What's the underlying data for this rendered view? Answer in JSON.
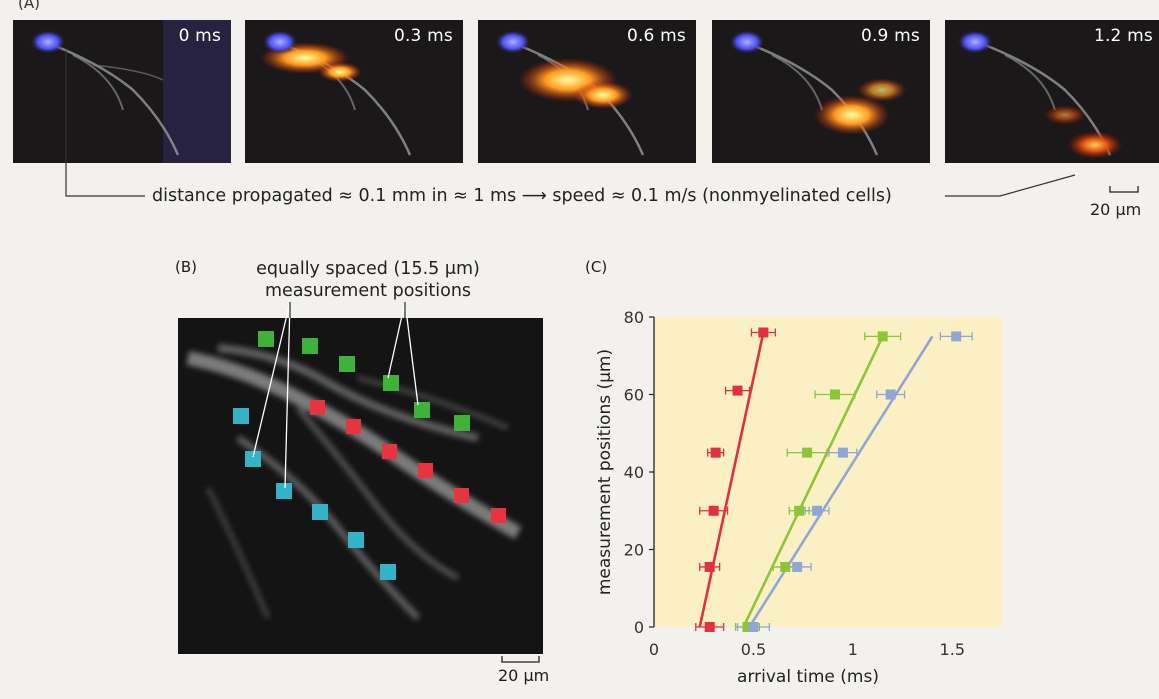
{
  "panel_a": {
    "frames": [
      {
        "time": "0 ms"
      },
      {
        "time": "0.3 ms"
      },
      {
        "time": "0.6 ms"
      },
      {
        "time": "0.9 ms"
      },
      {
        "time": "1.2 ms"
      }
    ],
    "caption": "distance propagated ≈ 0.1 mm in ≈ 1 ms ⟶ speed ≈ 0.1 m/s (nonmyelinated cells)",
    "scale_bar": "20 μm"
  },
  "panel_b": {
    "letter": "(B)",
    "label_line1": "equally spaced (15.5 μm)",
    "label_line2": "measurement positions",
    "scale_bar": "20 μm",
    "marker_colors": {
      "green": "#3fb23a",
      "red": "#e8343e",
      "cyan": "#35b3c6"
    }
  },
  "panel_c": {
    "letter": "(C)"
  },
  "chart_data": {
    "type": "scatter",
    "xlabel": "arrival time (ms)",
    "ylabel": "measurement positions (μm)",
    "xlim": [
      0,
      1.75
    ],
    "ylim": [
      0,
      80
    ],
    "xticks": [
      "0",
      "0.5",
      "1",
      "1.5"
    ],
    "xtick_values": [
      0,
      0.5,
      1,
      1.5
    ],
    "yticks": [
      "0",
      "20",
      "40",
      "60",
      "80"
    ],
    "ytick_values": [
      0,
      20,
      40,
      60,
      80
    ],
    "background": "#faf0c4",
    "series": [
      {
        "color": "#e23040",
        "points": [
          {
            "x": 0.28,
            "y": 0,
            "err": 0.07
          },
          {
            "x": 0.28,
            "y": 15.5,
            "err": 0.05
          },
          {
            "x": 0.3,
            "y": 30,
            "err": 0.07
          },
          {
            "x": 0.31,
            "y": 45,
            "err": 0.04
          },
          {
            "x": 0.42,
            "y": 61,
            "err": 0.06
          },
          {
            "x": 0.55,
            "y": 76,
            "err": 0.06
          }
        ],
        "fit": [
          [
            0.23,
            0
          ],
          [
            0.55,
            76
          ]
        ]
      },
      {
        "color": "#8cc43a",
        "points": [
          {
            "x": 0.47,
            "y": 0,
            "err": 0.06
          },
          {
            "x": 0.66,
            "y": 15.5,
            "err": 0.06
          },
          {
            "x": 0.73,
            "y": 30,
            "err": 0.05
          },
          {
            "x": 0.77,
            "y": 45,
            "err": 0.1
          },
          {
            "x": 0.91,
            "y": 60,
            "err": 0.1
          },
          {
            "x": 1.15,
            "y": 75,
            "err": 0.09
          }
        ],
        "fit": [
          [
            0.45,
            0
          ],
          [
            1.15,
            75
          ]
        ]
      },
      {
        "color": "#8fa6d6",
        "points": [
          {
            "x": 0.5,
            "y": 0,
            "err": 0.08
          },
          {
            "x": 0.72,
            "y": 15.5,
            "err": 0.07
          },
          {
            "x": 0.82,
            "y": 30,
            "err": 0.06
          },
          {
            "x": 0.95,
            "y": 45,
            "err": 0.07
          },
          {
            "x": 1.19,
            "y": 60,
            "err": 0.07
          },
          {
            "x": 1.52,
            "y": 75,
            "err": 0.08
          }
        ],
        "fit": [
          [
            0.48,
            0
          ],
          [
            1.4,
            75
          ]
        ]
      }
    ]
  }
}
